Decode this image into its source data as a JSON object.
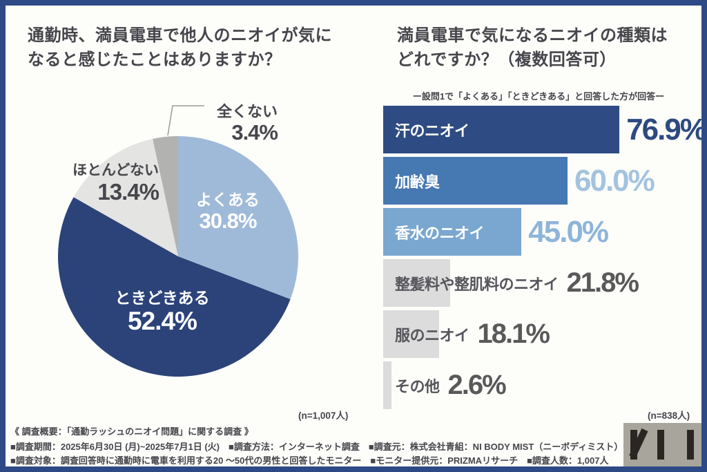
{
  "frame": {
    "border_color": "#2d4a87",
    "background": "#fdfdfa"
  },
  "left_panel": {
    "title_line1": "通勤時、満員電車で他人のニオイが気に",
    "title_line2": "なると感じたことはありますか？",
    "sample_note": "(n=1,007人)"
  },
  "right_panel": {
    "title_line1": "満員電車で気になるニオイの種類は",
    "title_line2": "どれですか？（複数回答可）",
    "subtitle": "ー設問1で「よくある」「ときどきある」と回答した方が回答ー",
    "sample_note": "(n=838人)"
  },
  "footer": {
    "line1": "《 調査概要：「通勤ラッシュのニオイ問題」に関する調査 》",
    "line2": "■調査期間：2025年6月30日 (月)~2025年7月1日 (火)　■調査方法：インターネット調査　■調査元：株式会社青組：NI BODY MIST（ニーボディミスト）",
    "line3": "■調査対象：調査回答時に通勤時に電車を利用する20 ～50代の男性と回答したモニター　■モニター提供元：PRIZMAリサーチ　■調査人数：1,007人"
  },
  "logo": {
    "letters": "NI",
    "background": "#a8a69c",
    "bar_color": "#2b2622"
  },
  "chart_data": [
    {
      "type": "pie",
      "title": "通勤時、満員電車で他人のニオイが気になると感じたことはありますか？",
      "n_label": "(n=1,007人)",
      "start_angle_deg": -90,
      "direction": "clockwise",
      "slices": [
        {
          "label": "よくある",
          "value": 30.8,
          "value_label": "30.8%",
          "color": "#9fbad8",
          "label_color": "#ffffff",
          "label_inside": true
        },
        {
          "label": "ときどきある",
          "value": 52.4,
          "value_label": "52.4%",
          "color": "#2b4379",
          "label_color": "#ffffff",
          "label_inside": true
        },
        {
          "label": "ほとんどない",
          "value": 13.4,
          "value_label": "13.4%",
          "color": "#e4e4e2",
          "label_color": "#45454b",
          "label_inside": false
        },
        {
          "label": "全くない",
          "value": 3.4,
          "value_label": "3.4%",
          "color": "#b2b2b0",
          "label_color": "#45454b",
          "label_inside": false
        }
      ]
    },
    {
      "type": "bar",
      "orientation": "horizontal",
      "title": "満員電車で気になるニオイの種類はどれですか？（複数回答可）",
      "subtitle": "ー設問1で「よくある」「ときどきある」と回答した方が回答ー",
      "n_label": "(n=838人)",
      "xlim": [
        0,
        100
      ],
      "categories": [
        "汗のニオイ",
        "加齢臭",
        "香水のニオイ",
        "整髪料や整肌料のニオイ",
        "服のニオイ",
        "その他"
      ],
      "values": [
        76.9,
        60.0,
        45.0,
        21.8,
        18.1,
        2.6
      ],
      "value_labels": [
        "76.9%",
        "60.0%",
        "45.0%",
        "21.8%",
        "18.1%",
        "2.6%"
      ],
      "bar_colors": [
        "#2e4c83",
        "#4678b2",
        "#7aa7d0",
        "#dcdcdc",
        "#dcdcdc",
        "#dcdcdc"
      ],
      "label_colors": [
        "#ffffff",
        "#ffffff",
        "#ffffff",
        "#55555b",
        "#55555b",
        "#55555b"
      ],
      "value_colors": [
        "#2d4a80",
        "#a3c3df",
        "#8eb5d9",
        "#595959",
        "#595959",
        "#595959"
      ],
      "value_at_bar_end": [
        true,
        true,
        true,
        false,
        false,
        false
      ]
    }
  ]
}
